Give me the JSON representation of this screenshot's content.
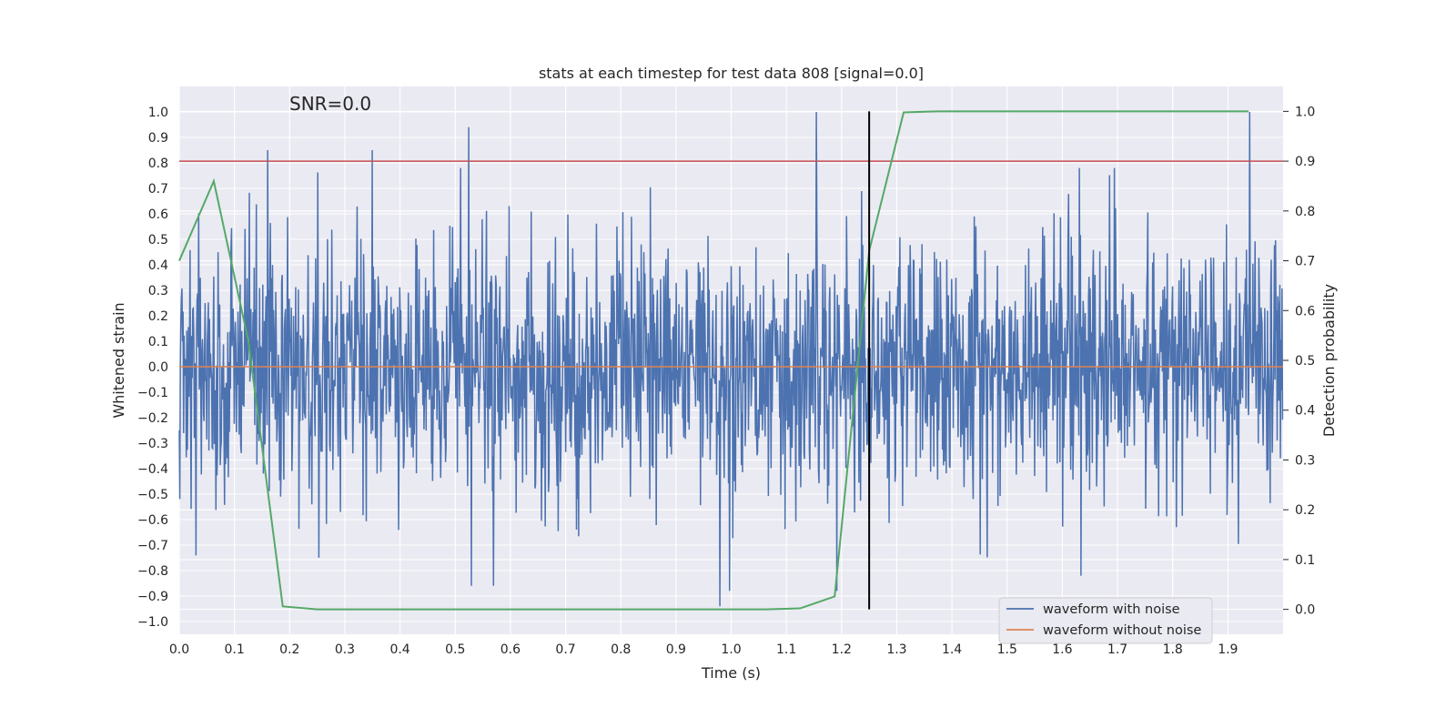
{
  "chart_data": {
    "type": "line",
    "title": "stats at each timestep for test data 808 [signal=0.0]",
    "xlabel": "Time (s)",
    "ylabel": "Whitened strain",
    "ylabel_right": "Detection probability",
    "annotation": "SNR=0.0",
    "xlim": [
      0.0,
      2.0
    ],
    "ylim": [
      -1.05,
      1.1
    ],
    "ylim_right": [
      -0.05,
      1.05
    ],
    "x_ticks": [
      0.0,
      0.1,
      0.2,
      0.3,
      0.4,
      0.5,
      0.6,
      0.7,
      0.8,
      0.9,
      1.0,
      1.1,
      1.2,
      1.3,
      1.4,
      1.5,
      1.6,
      1.7,
      1.8,
      1.9
    ],
    "x_tick_labels": [
      "0.0",
      "0.1",
      "0.2",
      "0.3",
      "0.4",
      "0.5",
      "0.6",
      "0.7",
      "0.8",
      "0.9",
      "1.0",
      "1.1",
      "1.2",
      "1.3",
      "1.4",
      "1.5",
      "1.6",
      "1.7",
      "1.8",
      "1.9"
    ],
    "y_ticks": [
      1.0,
      0.9,
      0.8,
      0.7,
      0.6,
      0.5,
      0.4,
      0.3,
      0.2,
      0.1,
      0.0,
      -0.1,
      -0.2,
      -0.3,
      -0.4,
      -0.5,
      -0.6,
      -0.7,
      -0.8,
      -0.9,
      -1.0
    ],
    "y_tick_labels": [
      "1.0",
      "0.9",
      "0.8",
      "0.7",
      "0.6",
      "0.5",
      "0.4",
      "0.3",
      "0.2",
      "0.1",
      "0.0",
      "−0.1",
      "−0.2",
      "−0.3",
      "−0.4",
      "−0.5",
      "−0.6",
      "−0.7",
      "−0.8",
      "−0.9",
      "−1.0"
    ],
    "y_right_ticks": [
      1.0,
      0.9,
      0.8,
      0.7,
      0.6,
      0.5,
      0.4,
      0.3,
      0.2,
      0.1,
      0.0
    ],
    "y_right_tick_labels": [
      "1.0",
      "0.9",
      "0.8",
      "0.7",
      "0.6",
      "0.5",
      "0.4",
      "0.3",
      "0.2",
      "0.1",
      "0.0"
    ],
    "grid": true,
    "legend_position": "lower-right",
    "series": [
      {
        "name": "waveform with noise",
        "axis": "left",
        "color": "#4c72b0",
        "generated": "noise",
        "samples": 2048,
        "seed": 808,
        "noise_scale": 0.25,
        "notable_points": [
          {
            "x": 0.16,
            "y": 0.85
          },
          {
            "x": 0.35,
            "y": 0.85
          },
          {
            "x": 0.525,
            "y": 0.94
          },
          {
            "x": 0.98,
            "y": -0.94
          },
          {
            "x": 1.155,
            "y": 1.0
          },
          {
            "x": 1.192,
            "y": -0.88
          },
          {
            "x": 1.635,
            "y": -0.82
          },
          {
            "x": 1.94,
            "y": 1.0
          },
          {
            "x": 0.03,
            "y": -0.74
          },
          {
            "x": 0.53,
            "y": -0.86
          },
          {
            "x": 0.57,
            "y": -0.86
          }
        ]
      },
      {
        "name": "waveform without noise",
        "axis": "left",
        "color": "#dd8452",
        "x": [
          0.0,
          2.0
        ],
        "y": [
          0.0,
          0.0
        ]
      },
      {
        "name": "detection probability",
        "axis": "right",
        "color": "#55a868",
        "x": [
          0.0,
          0.0625,
          0.125,
          0.1875,
          0.25,
          0.3125,
          0.375,
          0.4375,
          0.5,
          0.5625,
          0.625,
          0.6875,
          0.75,
          0.8125,
          0.875,
          0.9375,
          1.0,
          1.0625,
          1.125,
          1.1875,
          1.25,
          1.3125,
          1.375,
          1.4375,
          1.5,
          1.5625,
          1.625,
          1.6875,
          1.75,
          1.8125,
          1.875,
          1.9375
        ],
        "y": [
          0.7,
          0.86,
          0.54,
          0.006,
          0.0,
          0.0,
          0.0,
          0.0,
          0.0,
          0.0,
          0.0,
          0.0,
          0.0,
          0.0,
          0.0,
          0.0,
          0.0,
          0.0,
          0.002,
          0.026,
          0.72,
          0.998,
          1.0,
          1.0,
          1.0,
          1.0,
          1.0,
          1.0,
          1.0,
          1.0,
          1.0,
          1.0
        ]
      }
    ],
    "threshold_line": {
      "axis": "right",
      "y": 0.9,
      "color": "#c44e52"
    },
    "marker_line": {
      "x": 1.25,
      "y_range_right": [
        0.0,
        1.0
      ],
      "color": "#000000"
    },
    "background": "#eaeaf2",
    "grid_color": "#ffffff"
  }
}
